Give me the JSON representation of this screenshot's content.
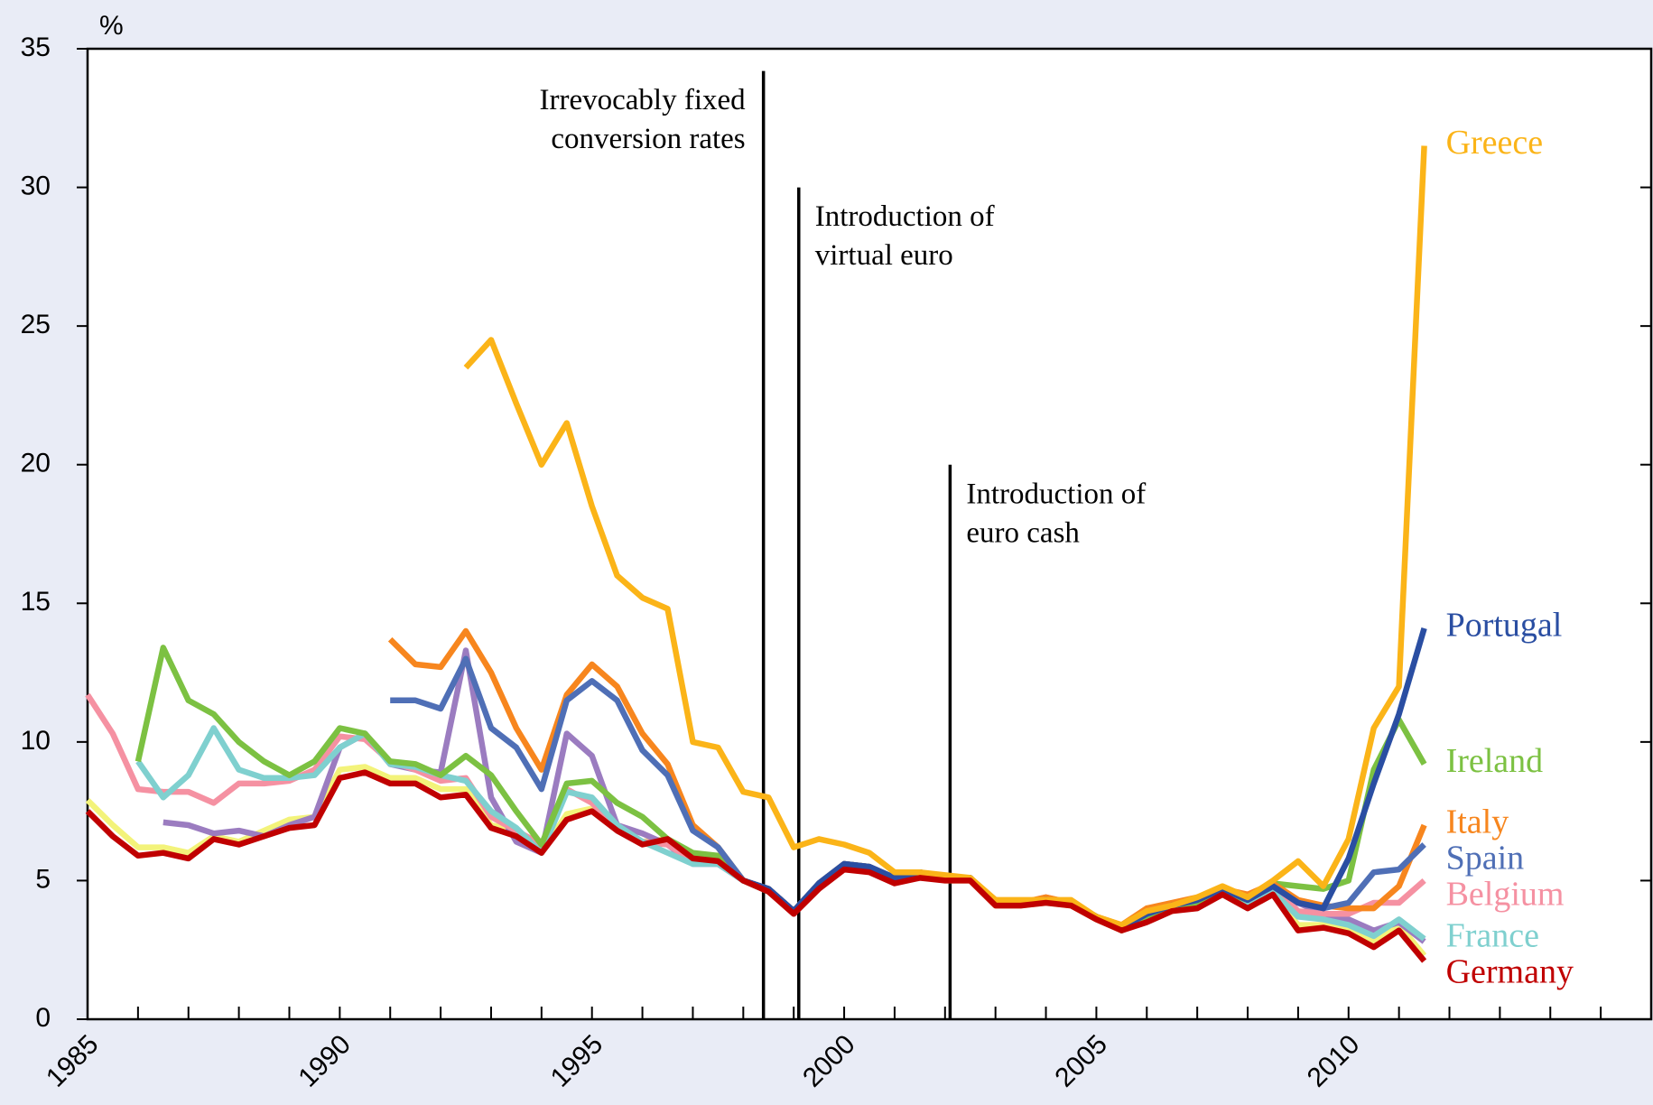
{
  "chart_data": {
    "type": "line",
    "y_unit": "%",
    "x": [
      1985,
      1985.5,
      1986,
      1986.5,
      1987,
      1987.5,
      1988,
      1988.5,
      1989,
      1989.5,
      1990,
      1990.5,
      1991,
      1991.5,
      1992,
      1992.5,
      1993,
      1993.5,
      1994,
      1994.5,
      1995,
      1995.5,
      1996,
      1996.5,
      1997,
      1997.5,
      1998,
      1998.5,
      1999,
      1999.5,
      2000,
      2000.5,
      2001,
      2001.5,
      2002,
      2002.5,
      2003,
      2003.5,
      2004,
      2004.5,
      2005,
      2005.5,
      2006,
      2006.5,
      2007,
      2007.5,
      2008,
      2008.5,
      2009,
      2009.5,
      2010,
      2010.5,
      2011,
      2011.5
    ],
    "series": [
      {
        "color": "#f3f37a",
        "values": [
          7.9,
          7.0,
          6.2,
          6.2,
          6.0,
          6.6,
          6.4,
          6.8,
          7.2,
          7.3,
          9.0,
          9.1,
          8.7,
          8.7,
          8.3,
          8.3,
          7.0,
          6.8,
          6.0,
          7.4,
          7.6,
          6.9,
          6.4,
          6.5,
          5.8,
          5.7,
          5.0,
          4.6,
          3.9,
          4.8,
          5.5,
          5.4,
          5.0,
          5.2,
          5.0,
          5.0,
          4.1,
          4.1,
          4.2,
          4.1,
          3.6,
          3.2,
          3.6,
          3.9,
          4.1,
          4.5,
          4.1,
          4.5,
          3.4,
          3.4,
          3.3,
          2.8,
          3.4,
          2.3
        ]
      },
      {
        "color": "#9b7cc0",
        "values": [
          null,
          null,
          null,
          7.1,
          7.0,
          6.7,
          6.8,
          6.6,
          7.0,
          7.3,
          9.8,
          10.3,
          9.2,
          9.0,
          8.9,
          13.3,
          8.0,
          6.4,
          6.0,
          10.3,
          9.5,
          7.0,
          6.7,
          6.3,
          5.6,
          5.6,
          5.0,
          4.7,
          3.9,
          4.9,
          5.6,
          5.5,
          5.1,
          5.3,
          5.1,
          5.1,
          4.2,
          4.2,
          4.3,
          4.2,
          3.7,
          3.3,
          3.7,
          4.0,
          4.3,
          4.7,
          4.3,
          4.8,
          4.2,
          3.8,
          3.6,
          3.2,
          3.5,
          2.8
        ]
      },
      {
        "name": "Belgium",
        "color": "#f591a2",
        "values": [
          11.7,
          10.3,
          8.3,
          8.2,
          8.2,
          7.8,
          8.5,
          8.5,
          8.6,
          9.0,
          10.2,
          10.1,
          9.3,
          9.0,
          8.6,
          8.7,
          7.3,
          6.8,
          6.3,
          8.3,
          7.8,
          6.9,
          6.4,
          6.3,
          5.7,
          5.7,
          5.0,
          4.7,
          3.9,
          4.9,
          5.6,
          5.5,
          5.1,
          5.3,
          5.1,
          5.1,
          4.2,
          4.2,
          4.4,
          4.2,
          3.7,
          3.3,
          3.7,
          4.0,
          4.3,
          4.7,
          4.3,
          4.8,
          3.9,
          3.8,
          3.8,
          4.2,
          4.2,
          5.0
        ]
      },
      {
        "name": "France",
        "color": "#7fd0cf",
        "values": [
          null,
          null,
          9.3,
          8.0,
          8.8,
          10.5,
          9.0,
          8.7,
          8.7,
          8.8,
          9.8,
          10.3,
          9.2,
          9.1,
          8.8,
          8.6,
          7.5,
          6.9,
          6.0,
          8.2,
          8.0,
          7.0,
          6.4,
          6.0,
          5.6,
          5.6,
          5.0,
          4.6,
          3.9,
          4.8,
          5.5,
          5.4,
          5.0,
          5.2,
          5.1,
          5.1,
          4.2,
          4.2,
          4.3,
          4.2,
          3.7,
          3.3,
          3.7,
          4.0,
          4.2,
          4.6,
          4.2,
          4.6,
          3.7,
          3.6,
          3.4,
          3.0,
          3.6,
          2.9
        ]
      },
      {
        "name": "Ireland",
        "color": "#7cc142",
        "values": [
          null,
          null,
          9.3,
          13.4,
          11.5,
          11.0,
          10.0,
          9.3,
          8.8,
          9.3,
          10.5,
          10.3,
          9.3,
          9.2,
          8.8,
          9.5,
          8.8,
          7.5,
          6.3,
          8.5,
          8.6,
          7.8,
          7.3,
          6.5,
          6.0,
          5.9,
          5.0,
          4.7,
          3.9,
          4.9,
          5.6,
          5.5,
          5.0,
          5.2,
          5.1,
          5.1,
          4.2,
          4.2,
          4.3,
          4.2,
          3.7,
          3.2,
          3.7,
          4.0,
          4.2,
          4.6,
          4.3,
          4.9,
          4.8,
          4.7,
          5.0,
          9.0,
          10.8,
          9.2
        ]
      },
      {
        "name": "Italy",
        "color": "#f7861e",
        "values": [
          null,
          null,
          null,
          null,
          null,
          null,
          null,
          null,
          null,
          null,
          null,
          null,
          13.7,
          12.8,
          12.7,
          14.0,
          12.5,
          10.5,
          9.0,
          11.7,
          12.8,
          12.0,
          10.3,
          9.2,
          7.0,
          6.2,
          5.0,
          4.7,
          3.9,
          4.9,
          5.6,
          5.5,
          5.1,
          5.3,
          5.1,
          5.1,
          4.3,
          4.2,
          4.4,
          4.2,
          3.7,
          3.4,
          4.0,
          4.2,
          4.4,
          4.7,
          4.5,
          4.9,
          4.3,
          4.1,
          4.0,
          4.0,
          4.8,
          7.0
        ]
      },
      {
        "name": "Spain",
        "color": "#4f6fb6",
        "values": [
          null,
          null,
          null,
          null,
          null,
          null,
          null,
          null,
          null,
          null,
          null,
          null,
          11.5,
          11.5,
          11.2,
          13.0,
          10.5,
          9.8,
          8.3,
          11.5,
          12.2,
          11.5,
          9.7,
          8.8,
          6.8,
          6.2,
          5.0,
          4.7,
          3.9,
          4.9,
          5.6,
          5.5,
          5.1,
          5.3,
          5.1,
          5.1,
          4.2,
          4.2,
          4.3,
          4.2,
          3.7,
          3.3,
          3.8,
          4.1,
          4.3,
          4.7,
          4.3,
          4.8,
          4.2,
          4.0,
          4.2,
          5.3,
          5.4,
          6.3
        ]
      },
      {
        "name": "Portugal",
        "color": "#2a4ea2",
        "values": [
          null,
          null,
          null,
          null,
          null,
          null,
          null,
          null,
          null,
          null,
          null,
          null,
          null,
          null,
          null,
          null,
          null,
          null,
          null,
          null,
          null,
          null,
          null,
          null,
          null,
          null,
          5.0,
          4.7,
          3.9,
          4.9,
          5.6,
          5.5,
          5.1,
          5.3,
          5.1,
          5.1,
          4.2,
          4.2,
          4.3,
          4.2,
          3.7,
          3.3,
          3.8,
          4.1,
          4.3,
          4.7,
          4.3,
          4.8,
          4.2,
          4.0,
          5.8,
          8.5,
          11.0,
          14.1
        ]
      },
      {
        "name": "Greece",
        "color": "#fbb418",
        "values": [
          null,
          null,
          null,
          null,
          null,
          null,
          null,
          null,
          null,
          null,
          null,
          null,
          null,
          null,
          null,
          23.5,
          24.5,
          22.2,
          20.0,
          21.5,
          18.5,
          16.0,
          15.2,
          14.8,
          10.0,
          9.8,
          8.2,
          8.0,
          6.2,
          6.5,
          6.3,
          6.0,
          5.3,
          5.3,
          5.2,
          5.1,
          4.3,
          4.3,
          4.3,
          4.3,
          3.7,
          3.4,
          3.9,
          4.1,
          4.4,
          4.8,
          4.4,
          5.0,
          5.7,
          4.8,
          6.5,
          10.5,
          12.0,
          31.5
        ]
      },
      {
        "name": "Germany",
        "color": "#c00000",
        "values": [
          7.5,
          6.6,
          5.9,
          6.0,
          5.8,
          6.5,
          6.3,
          6.6,
          6.9,
          7.0,
          8.7,
          8.9,
          8.5,
          8.5,
          8.0,
          8.1,
          6.9,
          6.6,
          6.0,
          7.2,
          7.5,
          6.8,
          6.3,
          6.5,
          5.8,
          5.7,
          5.0,
          4.6,
          3.8,
          4.7,
          5.4,
          5.3,
          4.9,
          5.1,
          5.0,
          5.0,
          4.1,
          4.1,
          4.2,
          4.1,
          3.6,
          3.2,
          3.5,
          3.9,
          4.0,
          4.5,
          4.0,
          4.5,
          3.2,
          3.3,
          3.1,
          2.6,
          3.2,
          2.1
        ]
      }
    ],
    "xlim": [
      1985,
      2016
    ],
    "xticks": [
      1985,
      1990,
      1995,
      2000,
      2005,
      2010
    ],
    "xticks_minor": [
      1986,
      1987,
      1988,
      1989,
      1991,
      1992,
      1993,
      1994,
      1996,
      1997,
      1998,
      1999,
      2001,
      2002,
      2003,
      2004,
      2006,
      2007,
      2008,
      2009,
      2011,
      2012,
      2013,
      2014,
      2015
    ],
    "ylim": [
      0,
      35
    ],
    "yticks": [
      0,
      5,
      10,
      15,
      20,
      25,
      30,
      35
    ],
    "grid": false,
    "annotations": [
      {
        "lines": [
          "Irrevocably fixed",
          "conversion rates"
        ],
        "x": 1998.4,
        "top": 34.2,
        "align": "left"
      },
      {
        "lines": [
          "Introduction of",
          "virtual euro"
        ],
        "x": 1999.1,
        "top": 30,
        "align": "right"
      },
      {
        "lines": [
          "Introduction of",
          "euro cash"
        ],
        "x": 2002.1,
        "top": 20,
        "align": "right"
      }
    ]
  }
}
